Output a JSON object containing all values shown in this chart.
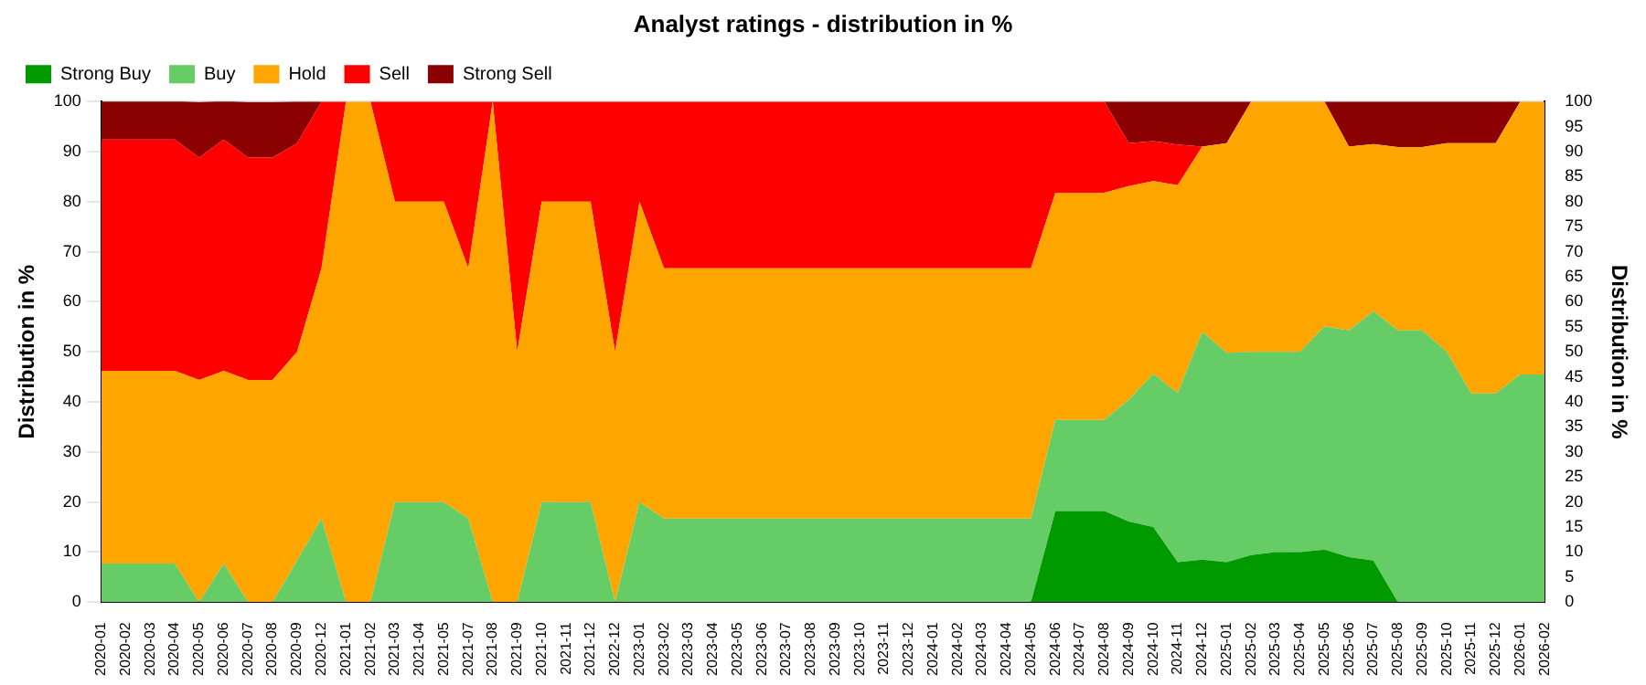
{
  "chart_data": {
    "type": "area",
    "title": "Analyst ratings - distribution in %",
    "ylabel": "Distribution in %",
    "y2label": "Distribution in %",
    "categories": [
      "2020-01",
      "2020-02",
      "2020-03",
      "2020-04",
      "2020-05",
      "2020-06",
      "2020-07",
      "2020-08",
      "2020-09",
      "2020-12",
      "2021-01",
      "2021-02",
      "2021-03",
      "2021-04",
      "2021-05",
      "2021-07",
      "2021-08",
      "2021-09",
      "2021-10",
      "2021-11",
      "2021-12",
      "2022-12",
      "2023-01",
      "2023-02",
      "2023-03",
      "2023-04",
      "2023-05",
      "2023-06",
      "2023-07",
      "2023-08",
      "2023-09",
      "2023-10",
      "2023-11",
      "2023-12",
      "2024-01",
      "2024-02",
      "2024-03",
      "2024-04",
      "2024-05",
      "2024-06",
      "2024-07",
      "2024-08",
      "2024-09",
      "2024-10",
      "2024-11",
      "2024-12",
      "2025-01",
      "2025-02",
      "2025-03",
      "2025-04",
      "2025-05",
      "2025-06",
      "2025-07",
      "2025-08",
      "2025-09",
      "2025-10",
      "2025-11",
      "2025-12",
      "2026-01",
      "2026-02"
    ],
    "stacked": true,
    "series": [
      {
        "name": "Strong Buy",
        "color": "#009900",
        "values": [
          0,
          0,
          0,
          0,
          0,
          0,
          0,
          0,
          0,
          0,
          0,
          0,
          0,
          0,
          0,
          0,
          0,
          0,
          0,
          0,
          0,
          0,
          0,
          0,
          0,
          0,
          0,
          0,
          0,
          0,
          0,
          0,
          0,
          0,
          0,
          0,
          0,
          0,
          0,
          18.2,
          18.2,
          18.2,
          16.1,
          15,
          8,
          8.5,
          8,
          9.4,
          10,
          10,
          10.5,
          9,
          8.3,
          0,
          0,
          0,
          0,
          0,
          0,
          0
        ]
      },
      {
        "name": "Buy",
        "color": "#66cc66",
        "values": [
          7.7,
          7.7,
          7.7,
          7.7,
          0,
          7.7,
          0,
          0,
          8.3,
          16.7,
          0,
          0,
          20,
          20,
          20,
          16.7,
          0,
          0,
          20,
          20,
          20,
          0,
          20,
          16.7,
          16.7,
          16.7,
          16.7,
          16.7,
          16.7,
          16.7,
          16.7,
          16.7,
          16.7,
          16.7,
          16.7,
          16.7,
          16.7,
          16.7,
          16.7,
          18.2,
          18.2,
          18.2,
          24.3,
          30.6,
          33.8,
          45.5,
          41.8,
          40.6,
          40,
          40,
          44.6,
          45.3,
          49.8,
          54.3,
          54.3,
          50,
          41.7,
          41.7,
          45.5,
          45.5
        ]
      },
      {
        "name": "Hold",
        "color": "#ffa500",
        "values": [
          38.5,
          38.5,
          38.5,
          38.5,
          44.4,
          38.5,
          44.4,
          44.4,
          41.7,
          50,
          100,
          100,
          60,
          60,
          60,
          50,
          100,
          50,
          60,
          60,
          60,
          50,
          60,
          50,
          50,
          50,
          50,
          50,
          50,
          50,
          50,
          50,
          50,
          50,
          50,
          50,
          50,
          50,
          50,
          45.4,
          45.4,
          45.4,
          42.7,
          38.5,
          41.5,
          37,
          41.9,
          50,
          50,
          50,
          44.9,
          36.7,
          33.4,
          36.6,
          36.6,
          41.7,
          50,
          50,
          54.5,
          54.5
        ]
      },
      {
        "name": "Sell",
        "color": "#ff0000",
        "values": [
          46.2,
          46.2,
          46.2,
          46.2,
          44.4,
          46.2,
          44.4,
          44.4,
          41.7,
          33.3,
          0,
          0,
          20,
          20,
          20,
          33.3,
          0,
          50,
          20,
          20,
          20,
          50,
          20,
          33.3,
          33.3,
          33.3,
          33.3,
          33.3,
          33.3,
          33.3,
          33.3,
          33.3,
          33.3,
          33.3,
          33.3,
          33.3,
          33.3,
          33.3,
          33.3,
          18.2,
          18.2,
          18.2,
          8.6,
          8,
          8.1,
          0,
          0,
          0,
          0,
          0,
          0,
          0,
          0,
          0,
          0,
          0,
          0,
          0,
          0,
          0
        ]
      },
      {
        "name": "Strong Sell",
        "color": "#8b0000",
        "values": [
          7.7,
          7.7,
          7.7,
          7.7,
          11.1,
          7.7,
          11.1,
          11.1,
          8.3,
          0,
          0,
          0,
          0,
          0,
          0,
          0,
          0,
          0,
          0,
          0,
          0,
          0,
          0,
          0,
          0,
          0,
          0,
          0,
          0,
          0,
          0,
          0,
          0,
          0,
          0,
          0,
          0,
          0,
          0,
          0,
          0,
          0,
          8.3,
          7.9,
          8.6,
          9,
          8.3,
          0,
          0,
          0,
          0,
          9,
          8.5,
          9.1,
          9.1,
          8.3,
          8.3,
          8.3,
          0,
          0
        ]
      }
    ],
    "ylim": [
      0,
      100
    ],
    "yticks": [
      0,
      10,
      20,
      30,
      40,
      50,
      60,
      70,
      80,
      90,
      100
    ],
    "y2lim": [
      0,
      100
    ],
    "y2ticks": [
      0,
      5,
      10,
      15,
      20,
      25,
      30,
      35,
      40,
      45,
      50,
      55,
      60,
      65,
      70,
      75,
      80,
      85,
      90,
      95,
      100
    ],
    "grid": "y",
    "legend": "top left"
  }
}
